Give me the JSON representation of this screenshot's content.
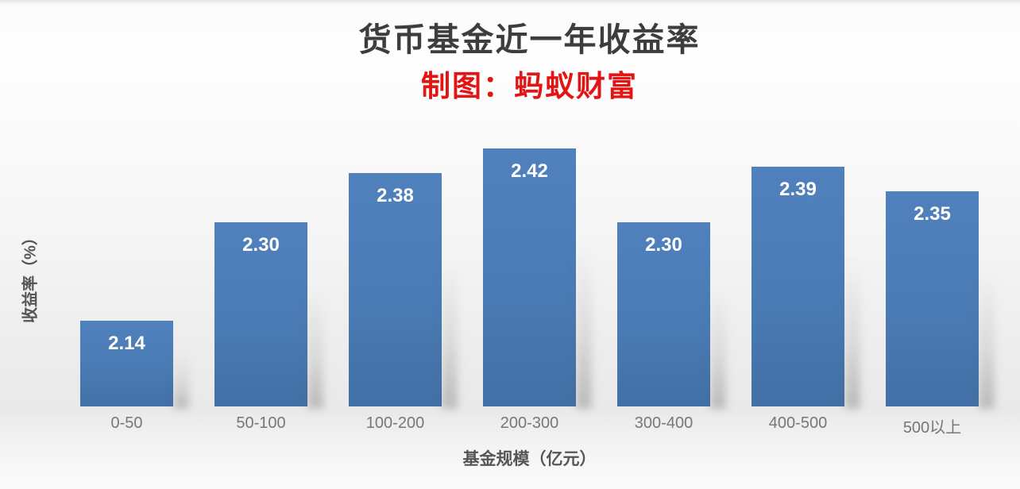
{
  "colors": {
    "title": "#3d3d3d",
    "subtitle": "#e21414",
    "bar_top": "#5181bd",
    "bar_mid": "#4a7ab3",
    "bar_bottom": "#4170a6",
    "value_label": "#ffffff",
    "category_label": "#777777",
    "axis_label": "#555555"
  },
  "chart_data": {
    "type": "bar",
    "title": "货币基金近一年收益率",
    "subtitle": "制图：蚂蚁财富",
    "categories": [
      "0-50",
      "50-100",
      "100-200",
      "200-300",
      "300-400",
      "400-500",
      "500以上"
    ],
    "values": [
      2.14,
      2.3,
      2.38,
      2.42,
      2.3,
      2.39,
      2.35
    ],
    "value_labels": [
      "2.14",
      "2.30",
      "2.38",
      "2.42",
      "2.30",
      "2.39",
      "2.35"
    ],
    "xlabel": "基金规模（亿元）",
    "ylabel": "收益率（%）",
    "ylim": [
      2.0,
      2.48
    ],
    "grid": false,
    "legend": false,
    "bar_color": "#4a7ab3"
  }
}
